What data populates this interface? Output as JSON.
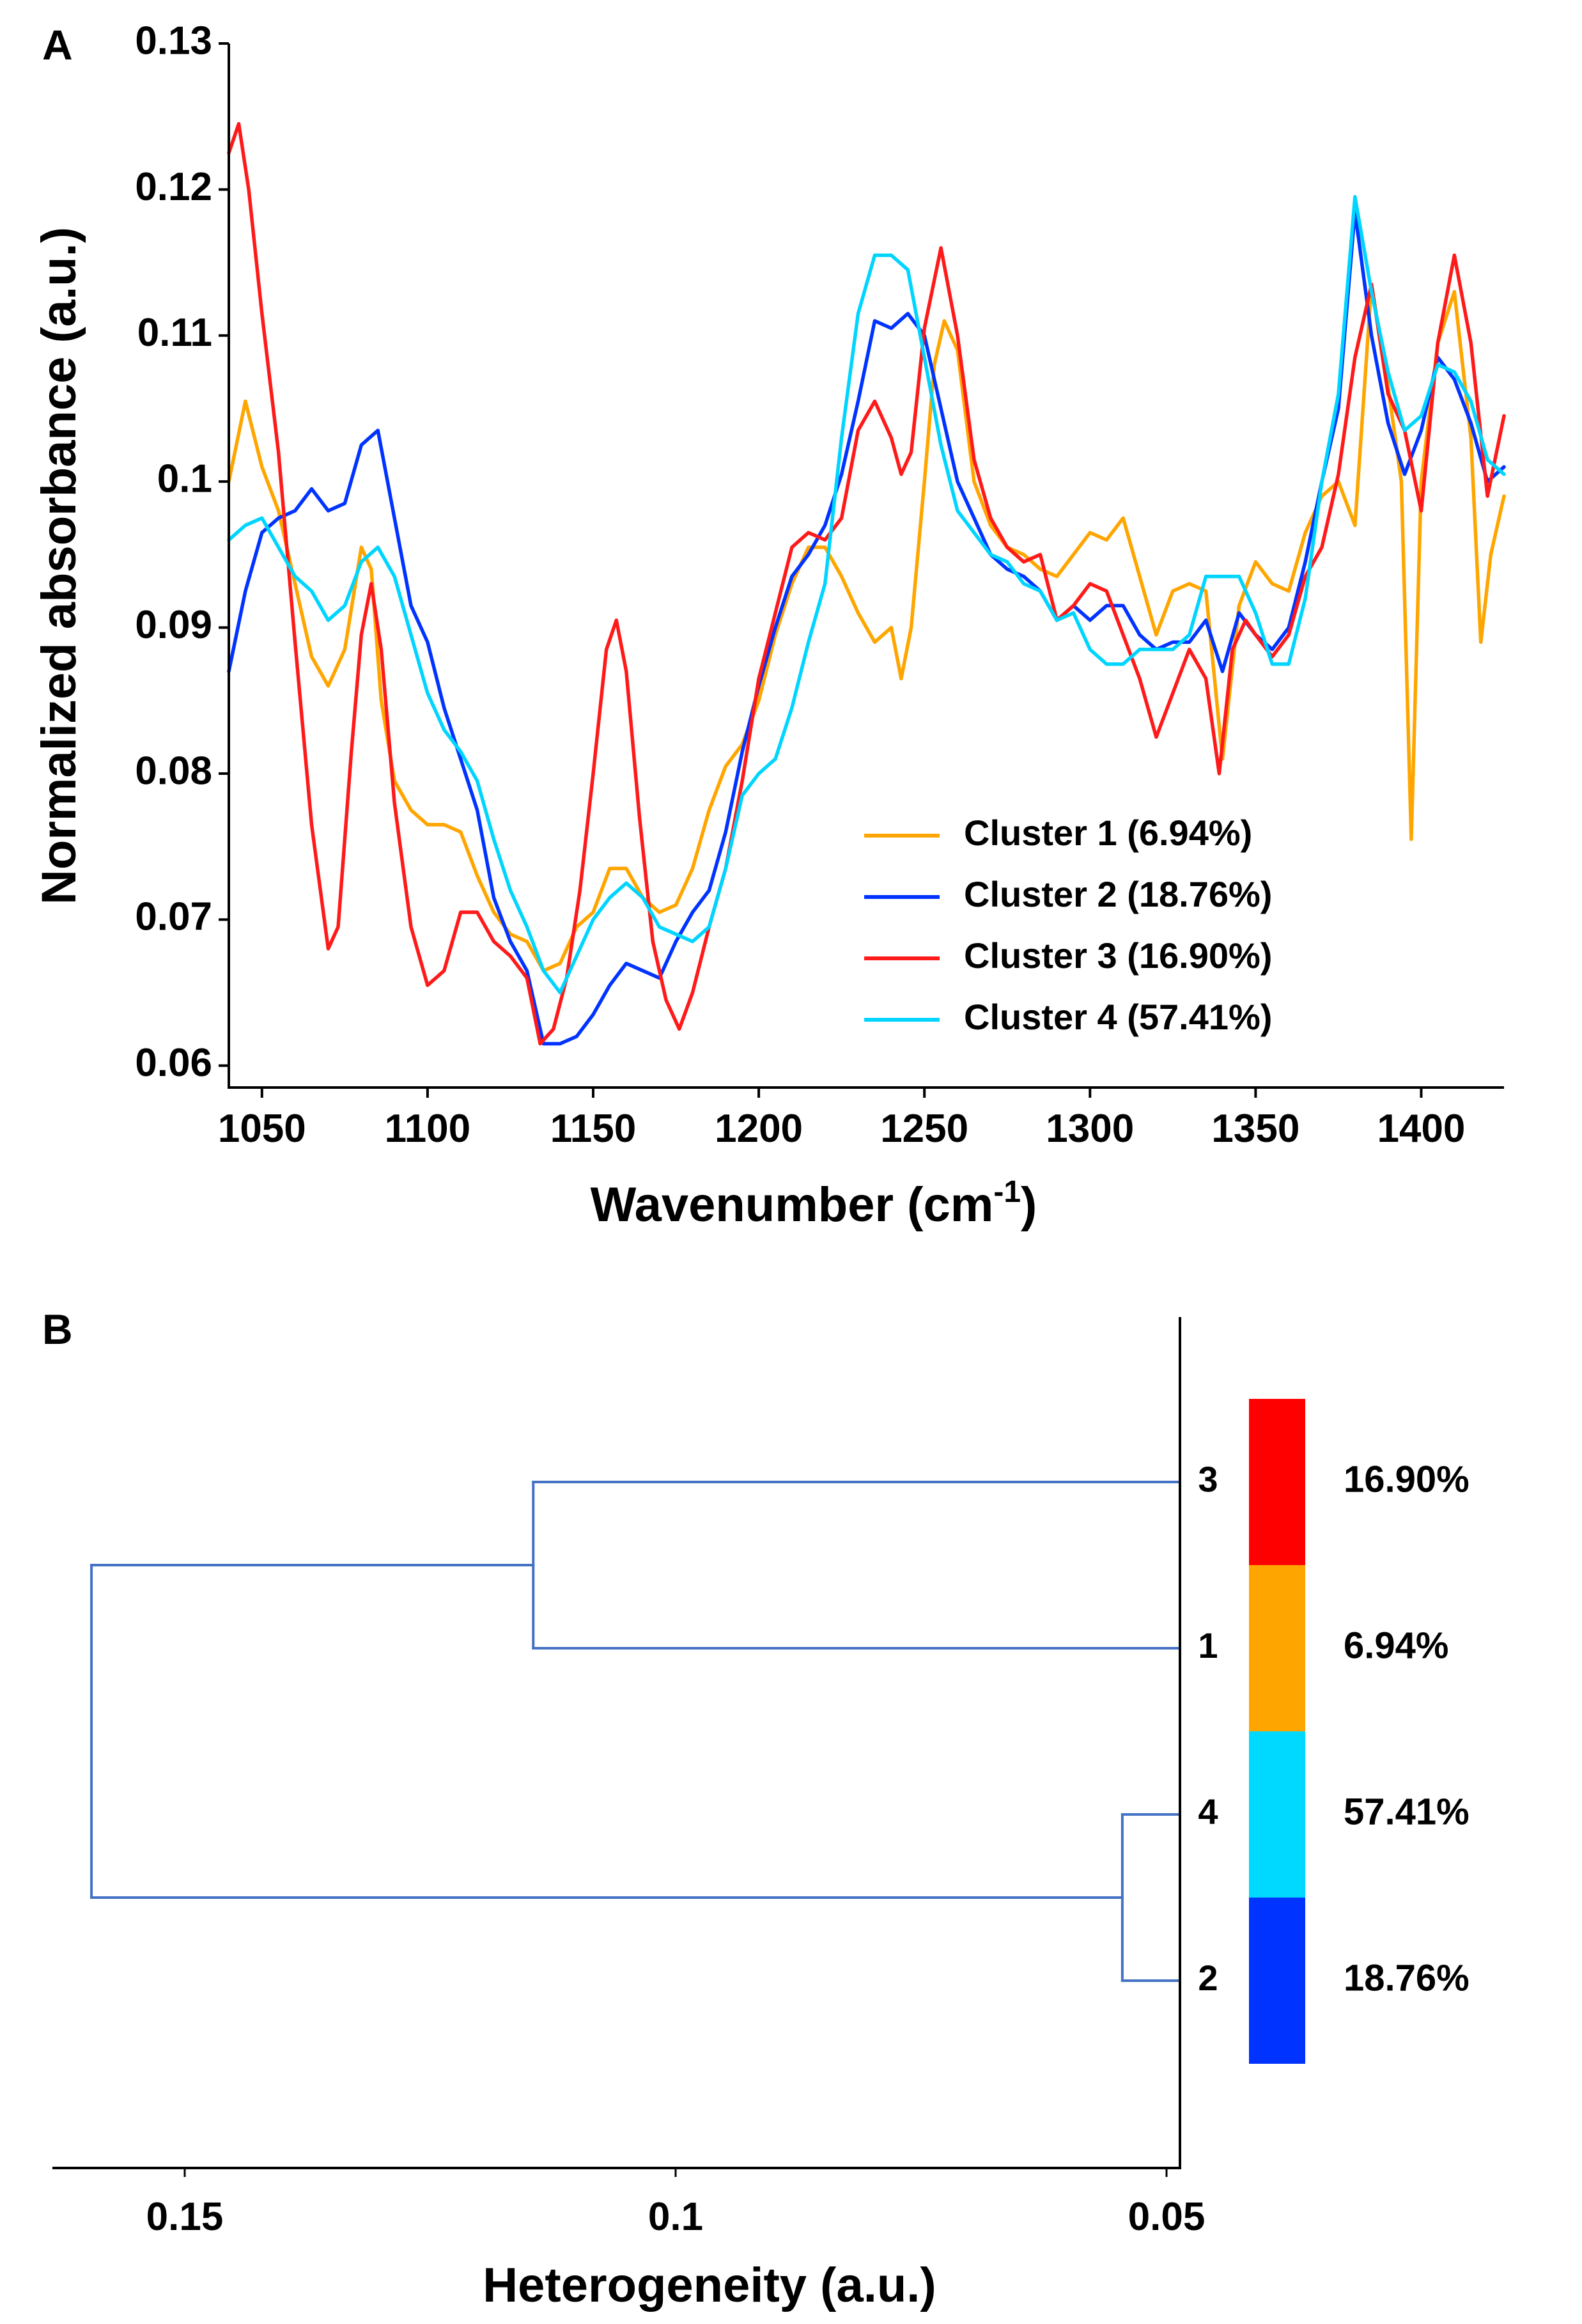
{
  "colors": {
    "cluster_1": "#FFA500",
    "cluster_2": "#0033FF",
    "cluster_3": "#FF1A1A",
    "cluster_4": "#00D5FF",
    "dendrogram": "#4472C4",
    "bar_red": "#FF0000",
    "bar_orange": "#FFA500",
    "bar_cyan": "#00D9FF",
    "bar_blue": "#0033FF"
  },
  "chart_data": [
    {
      "panel": "A",
      "type": "line",
      "xlabel_main": "Wavenumber (cm",
      "xlabel_sup": "-1",
      "xlabel_end": ")",
      "ylabel": "Normalized absorbance (a.u.)",
      "xlim": [
        1040,
        1425
      ],
      "ylim": [
        0.0585,
        0.13
      ],
      "x_ticks": [
        1050,
        1100,
        1150,
        1200,
        1250,
        1300,
        1350,
        1400
      ],
      "y_ticks": [
        0.06,
        0.07,
        0.08,
        0.09,
        0.1,
        0.11,
        0.12,
        0.13
      ],
      "y_tick_labels": [
        "0.06",
        "0.07",
        "0.08",
        "0.09",
        "0.1",
        "0.11",
        "0.12",
        "0.13"
      ],
      "legend_position": "lower-right",
      "series": [
        {
          "name": "Cluster 1 (6.94%)",
          "color": "#FFA500",
          "x": [
            1040,
            1045,
            1050,
            1055,
            1060,
            1065,
            1070,
            1075,
            1080,
            1083,
            1086,
            1090,
            1095,
            1100,
            1105,
            1110,
            1115,
            1120,
            1125,
            1130,
            1135,
            1140,
            1145,
            1150,
            1155,
            1160,
            1165,
            1170,
            1175,
            1180,
            1185,
            1190,
            1195,
            1200,
            1205,
            1210,
            1215,
            1220,
            1225,
            1230,
            1235,
            1240,
            1243,
            1246,
            1250,
            1253,
            1256,
            1260,
            1265,
            1270,
            1275,
            1280,
            1285,
            1290,
            1295,
            1300,
            1305,
            1310,
            1315,
            1320,
            1325,
            1330,
            1335,
            1340,
            1345,
            1350,
            1355,
            1360,
            1365,
            1370,
            1375,
            1380,
            1385,
            1390,
            1394,
            1397,
            1400,
            1405,
            1410,
            1415,
            1418,
            1421,
            1425
          ],
          "values": [
            0.1,
            0.1055,
            0.101,
            0.098,
            0.093,
            0.088,
            0.086,
            0.0885,
            0.0955,
            0.094,
            0.085,
            0.0795,
            0.0775,
            0.0765,
            0.0765,
            0.076,
            0.073,
            0.0705,
            0.069,
            0.0685,
            0.0665,
            0.067,
            0.0695,
            0.0705,
            0.0735,
            0.0735,
            0.0715,
            0.0705,
            0.071,
            0.0735,
            0.0775,
            0.0805,
            0.082,
            0.085,
            0.0895,
            0.093,
            0.0955,
            0.0955,
            0.0935,
            0.091,
            0.089,
            0.09,
            0.0865,
            0.09,
            0.1,
            0.108,
            0.111,
            0.109,
            0.1,
            0.097,
            0.0955,
            0.095,
            0.094,
            0.0935,
            0.095,
            0.0965,
            0.096,
            0.0975,
            0.0935,
            0.0895,
            0.0925,
            0.093,
            0.0925,
            0.081,
            0.0915,
            0.0945,
            0.093,
            0.0925,
            0.0965,
            0.099,
            0.1,
            0.097,
            0.1135,
            0.1065,
            0.1,
            0.0755,
            0.1,
            0.1095,
            0.113,
            0.103,
            0.089,
            0.095,
            0.099
          ]
        },
        {
          "name": "Cluster 2 (18.76%)",
          "color": "#0033FF",
          "x": [
            1040,
            1045,
            1050,
            1055,
            1060,
            1065,
            1070,
            1075,
            1080,
            1085,
            1090,
            1095,
            1100,
            1105,
            1110,
            1115,
            1120,
            1125,
            1130,
            1135,
            1140,
            1145,
            1150,
            1155,
            1160,
            1165,
            1170,
            1175,
            1180,
            1185,
            1190,
            1195,
            1200,
            1205,
            1210,
            1215,
            1220,
            1225,
            1230,
            1235,
            1240,
            1245,
            1250,
            1255,
            1260,
            1265,
            1270,
            1275,
            1280,
            1285,
            1290,
            1295,
            1300,
            1305,
            1310,
            1315,
            1320,
            1325,
            1330,
            1335,
            1340,
            1345,
            1350,
            1355,
            1360,
            1365,
            1370,
            1375,
            1380,
            1385,
            1390,
            1395,
            1400,
            1405,
            1410,
            1415,
            1420,
            1425
          ],
          "values": [
            0.087,
            0.0925,
            0.0965,
            0.0975,
            0.098,
            0.0995,
            0.098,
            0.0985,
            0.1025,
            0.1035,
            0.0975,
            0.0915,
            0.089,
            0.0845,
            0.081,
            0.0775,
            0.0715,
            0.0685,
            0.0665,
            0.0615,
            0.0615,
            0.062,
            0.0635,
            0.0655,
            0.067,
            0.0665,
            0.066,
            0.0685,
            0.0705,
            0.072,
            0.076,
            0.0815,
            0.086,
            0.09,
            0.0935,
            0.095,
            0.097,
            0.1005,
            0.1055,
            0.111,
            0.1105,
            0.1115,
            0.11,
            0.105,
            0.1,
            0.0975,
            0.095,
            0.094,
            0.0935,
            0.0925,
            0.0905,
            0.0915,
            0.0905,
            0.0915,
            0.0915,
            0.0895,
            0.0885,
            0.089,
            0.089,
            0.0905,
            0.087,
            0.091,
            0.0895,
            0.0885,
            0.09,
            0.0945,
            0.1,
            0.105,
            0.1185,
            0.11,
            0.104,
            0.1005,
            0.1035,
            0.1085,
            0.107,
            0.104,
            0.1,
            0.101
          ]
        },
        {
          "name": "Cluster 3 (16.90%)",
          "color": "#FF1A1A",
          "x": [
            1040,
            1043,
            1046,
            1050,
            1055,
            1060,
            1065,
            1070,
            1073,
            1077,
            1080,
            1083,
            1086,
            1090,
            1095,
            1100,
            1105,
            1110,
            1115,
            1120,
            1125,
            1130,
            1134,
            1138,
            1142,
            1146,
            1150,
            1154,
            1157,
            1160,
            1164,
            1168,
            1172,
            1176,
            1180,
            1185,
            1190,
            1195,
            1200,
            1205,
            1210,
            1215,
            1220,
            1225,
            1230,
            1235,
            1240,
            1243,
            1246,
            1250,
            1255,
            1260,
            1265,
            1270,
            1275,
            1280,
            1285,
            1290,
            1295,
            1300,
            1305,
            1310,
            1315,
            1320,
            1325,
            1330,
            1335,
            1339,
            1343,
            1347,
            1350,
            1355,
            1360,
            1365,
            1370,
            1375,
            1380,
            1385,
            1390,
            1395,
            1400,
            1405,
            1410,
            1415,
            1420,
            1425
          ],
          "values": [
            0.1225,
            0.1245,
            0.12,
            0.1115,
            0.102,
            0.089,
            0.0765,
            0.068,
            0.0695,
            0.0815,
            0.0895,
            0.093,
            0.0885,
            0.078,
            0.0695,
            0.0655,
            0.0665,
            0.0705,
            0.0705,
            0.0685,
            0.0675,
            0.066,
            0.0615,
            0.0625,
            0.066,
            0.072,
            0.08,
            0.0885,
            0.0905,
            0.087,
            0.077,
            0.0685,
            0.0645,
            0.0625,
            0.065,
            0.0695,
            0.0735,
            0.0795,
            0.0865,
            0.091,
            0.0955,
            0.0965,
            0.096,
            0.0975,
            0.1035,
            0.1055,
            0.103,
            0.1005,
            0.102,
            0.1105,
            0.116,
            0.11,
            0.1015,
            0.0975,
            0.0955,
            0.0945,
            0.095,
            0.0905,
            0.0915,
            0.093,
            0.0925,
            0.0895,
            0.0865,
            0.0825,
            0.0855,
            0.0885,
            0.0865,
            0.08,
            0.0885,
            0.0905,
            0.0895,
            0.088,
            0.0895,
            0.0935,
            0.0955,
            0.1005,
            0.1085,
            0.1135,
            0.106,
            0.1035,
            0.098,
            0.1095,
            0.1155,
            0.1095,
            0.099,
            0.1045
          ]
        },
        {
          "name": "Cluster 4 (57.41%)",
          "color": "#00D5FF",
          "x": [
            1040,
            1045,
            1050,
            1055,
            1060,
            1065,
            1070,
            1075,
            1080,
            1085,
            1090,
            1095,
            1100,
            1105,
            1110,
            1115,
            1120,
            1125,
            1130,
            1135,
            1140,
            1145,
            1150,
            1155,
            1160,
            1165,
            1170,
            1175,
            1180,
            1185,
            1190,
            1195,
            1200,
            1205,
            1210,
            1215,
            1220,
            1225,
            1230,
            1235,
            1240,
            1245,
            1250,
            1255,
            1260,
            1265,
            1270,
            1275,
            1280,
            1285,
            1290,
            1295,
            1300,
            1305,
            1310,
            1315,
            1320,
            1325,
            1330,
            1335,
            1340,
            1345,
            1350,
            1355,
            1360,
            1365,
            1370,
            1375,
            1380,
            1385,
            1390,
            1395,
            1400,
            1405,
            1410,
            1415,
            1420,
            1425
          ],
          "values": [
            0.096,
            0.097,
            0.0975,
            0.0955,
            0.0935,
            0.0925,
            0.0905,
            0.0915,
            0.0945,
            0.0955,
            0.0935,
            0.0895,
            0.0855,
            0.083,
            0.0815,
            0.0795,
            0.0755,
            0.072,
            0.0695,
            0.0665,
            0.065,
            0.0675,
            0.07,
            0.0715,
            0.0725,
            0.0715,
            0.0695,
            0.069,
            0.0685,
            0.0695,
            0.0735,
            0.0785,
            0.08,
            0.081,
            0.0845,
            0.089,
            0.093,
            0.103,
            0.1115,
            0.1155,
            0.1155,
            0.1145,
            0.1085,
            0.1025,
            0.098,
            0.0965,
            0.095,
            0.0945,
            0.093,
            0.0925,
            0.0905,
            0.091,
            0.0885,
            0.0875,
            0.0875,
            0.0885,
            0.0885,
            0.0885,
            0.0895,
            0.0935,
            0.0935,
            0.0935,
            0.091,
            0.0875,
            0.0875,
            0.092,
            0.1,
            0.106,
            0.1195,
            0.113,
            0.1075,
            0.1035,
            0.1045,
            0.108,
            0.1075,
            0.1055,
            0.1015,
            0.1005
          ]
        }
      ]
    },
    {
      "panel": "B",
      "type": "dendrogram",
      "xlabel": "Heterogeneity (a.u.)",
      "xlim": [
        0.163,
        0.05
      ],
      "x_ticks": [
        0.15,
        0.1,
        0.05
      ],
      "x_tick_labels": [
        "0.15",
        "0.1",
        "0.05"
      ],
      "leaves": [
        {
          "label": "3",
          "percent": "16.90%",
          "color": "#FF0000"
        },
        {
          "label": "1",
          "percent": "6.94%",
          "color": "#FFA500"
        },
        {
          "label": "4",
          "percent": "57.41%",
          "color": "#00D9FF"
        },
        {
          "label": "2",
          "percent": "18.76%",
          "color": "#0033FF"
        }
      ],
      "merges": [
        {
          "left_leaf": 0,
          "right_leaf": 1,
          "height": 0.1145
        },
        {
          "left_leaf": 2,
          "right_leaf": 3,
          "height": 0.0545
        },
        {
          "left_group": [
            0,
            1
          ],
          "right_group": [
            2,
            3
          ],
          "height": 0.1595
        }
      ]
    }
  ],
  "panel_labels": [
    "A",
    "B"
  ]
}
